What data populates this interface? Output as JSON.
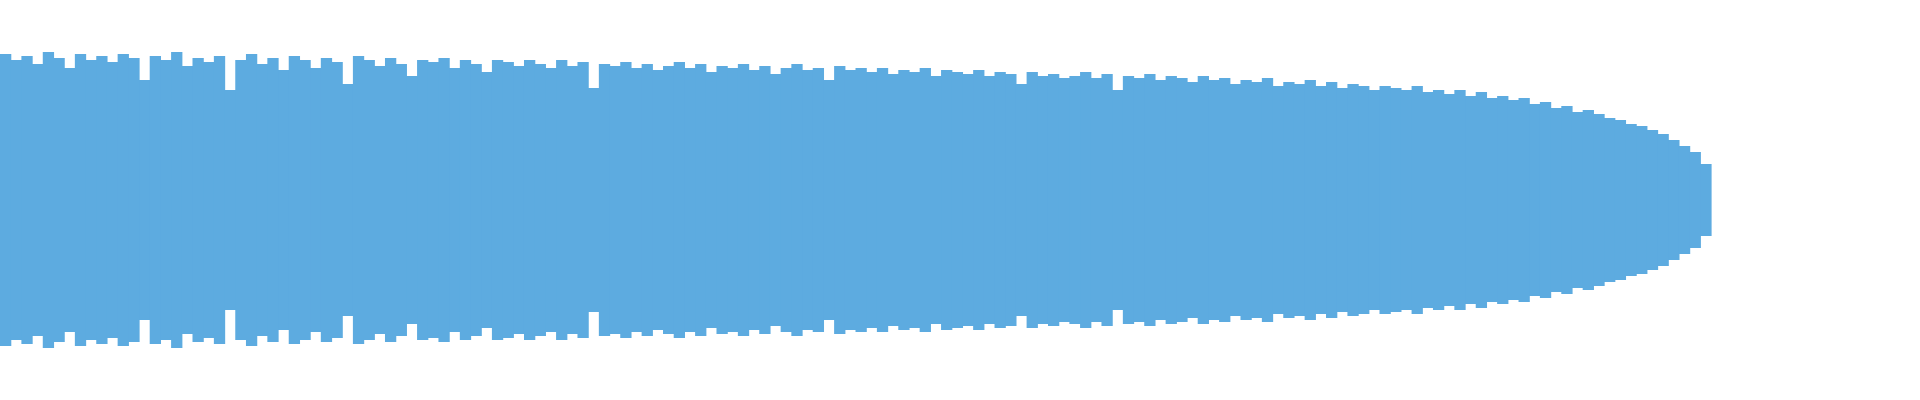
{
  "chart_data": {
    "type": "waveform",
    "color": "#5dabe0",
    "ylim": [
      -1,
      1
    ],
    "values": [
      0.73,
      0.7,
      0.72,
      0.68,
      0.74,
      0.71,
      0.66,
      0.73,
      0.7,
      0.72,
      0.69,
      0.73,
      0.71,
      0.6,
      0.72,
      0.7,
      0.74,
      0.67,
      0.71,
      0.69,
      0.72,
      0.55,
      0.7,
      0.73,
      0.68,
      0.71,
      0.65,
      0.72,
      0.7,
      0.66,
      0.71,
      0.69,
      0.58,
      0.72,
      0.7,
      0.67,
      0.71,
      0.68,
      0.62,
      0.7,
      0.69,
      0.71,
      0.66,
      0.7,
      0.68,
      0.64,
      0.7,
      0.69,
      0.67,
      0.7,
      0.68,
      0.66,
      0.7,
      0.67,
      0.69,
      0.56,
      0.68,
      0.67,
      0.69,
      0.66,
      0.68,
      0.65,
      0.67,
      0.69,
      0.66,
      0.68,
      0.64,
      0.67,
      0.66,
      0.68,
      0.65,
      0.67,
      0.63,
      0.66,
      0.68,
      0.65,
      0.66,
      0.6,
      0.67,
      0.65,
      0.66,
      0.64,
      0.66,
      0.63,
      0.65,
      0.64,
      0.66,
      0.62,
      0.65,
      0.64,
      0.63,
      0.65,
      0.62,
      0.64,
      0.63,
      0.58,
      0.64,
      0.62,
      0.63,
      0.61,
      0.62,
      0.64,
      0.61,
      0.63,
      0.55,
      0.62,
      0.61,
      0.63,
      0.6,
      0.62,
      0.61,
      0.59,
      0.62,
      0.6,
      0.61,
      0.58,
      0.6,
      0.59,
      0.61,
      0.57,
      0.59,
      0.58,
      0.6,
      0.57,
      0.59,
      0.56,
      0.58,
      0.57,
      0.55,
      0.57,
      0.56,
      0.55,
      0.57,
      0.54,
      0.55,
      0.53,
      0.55,
      0.52,
      0.54,
      0.51,
      0.52,
      0.5,
      0.51,
      0.48,
      0.49,
      0.46,
      0.47,
      0.44,
      0.45,
      0.43,
      0.41,
      0.4,
      0.38,
      0.37,
      0.35,
      0.33,
      0.3,
      0.27,
      0.24,
      0.18
    ]
  }
}
